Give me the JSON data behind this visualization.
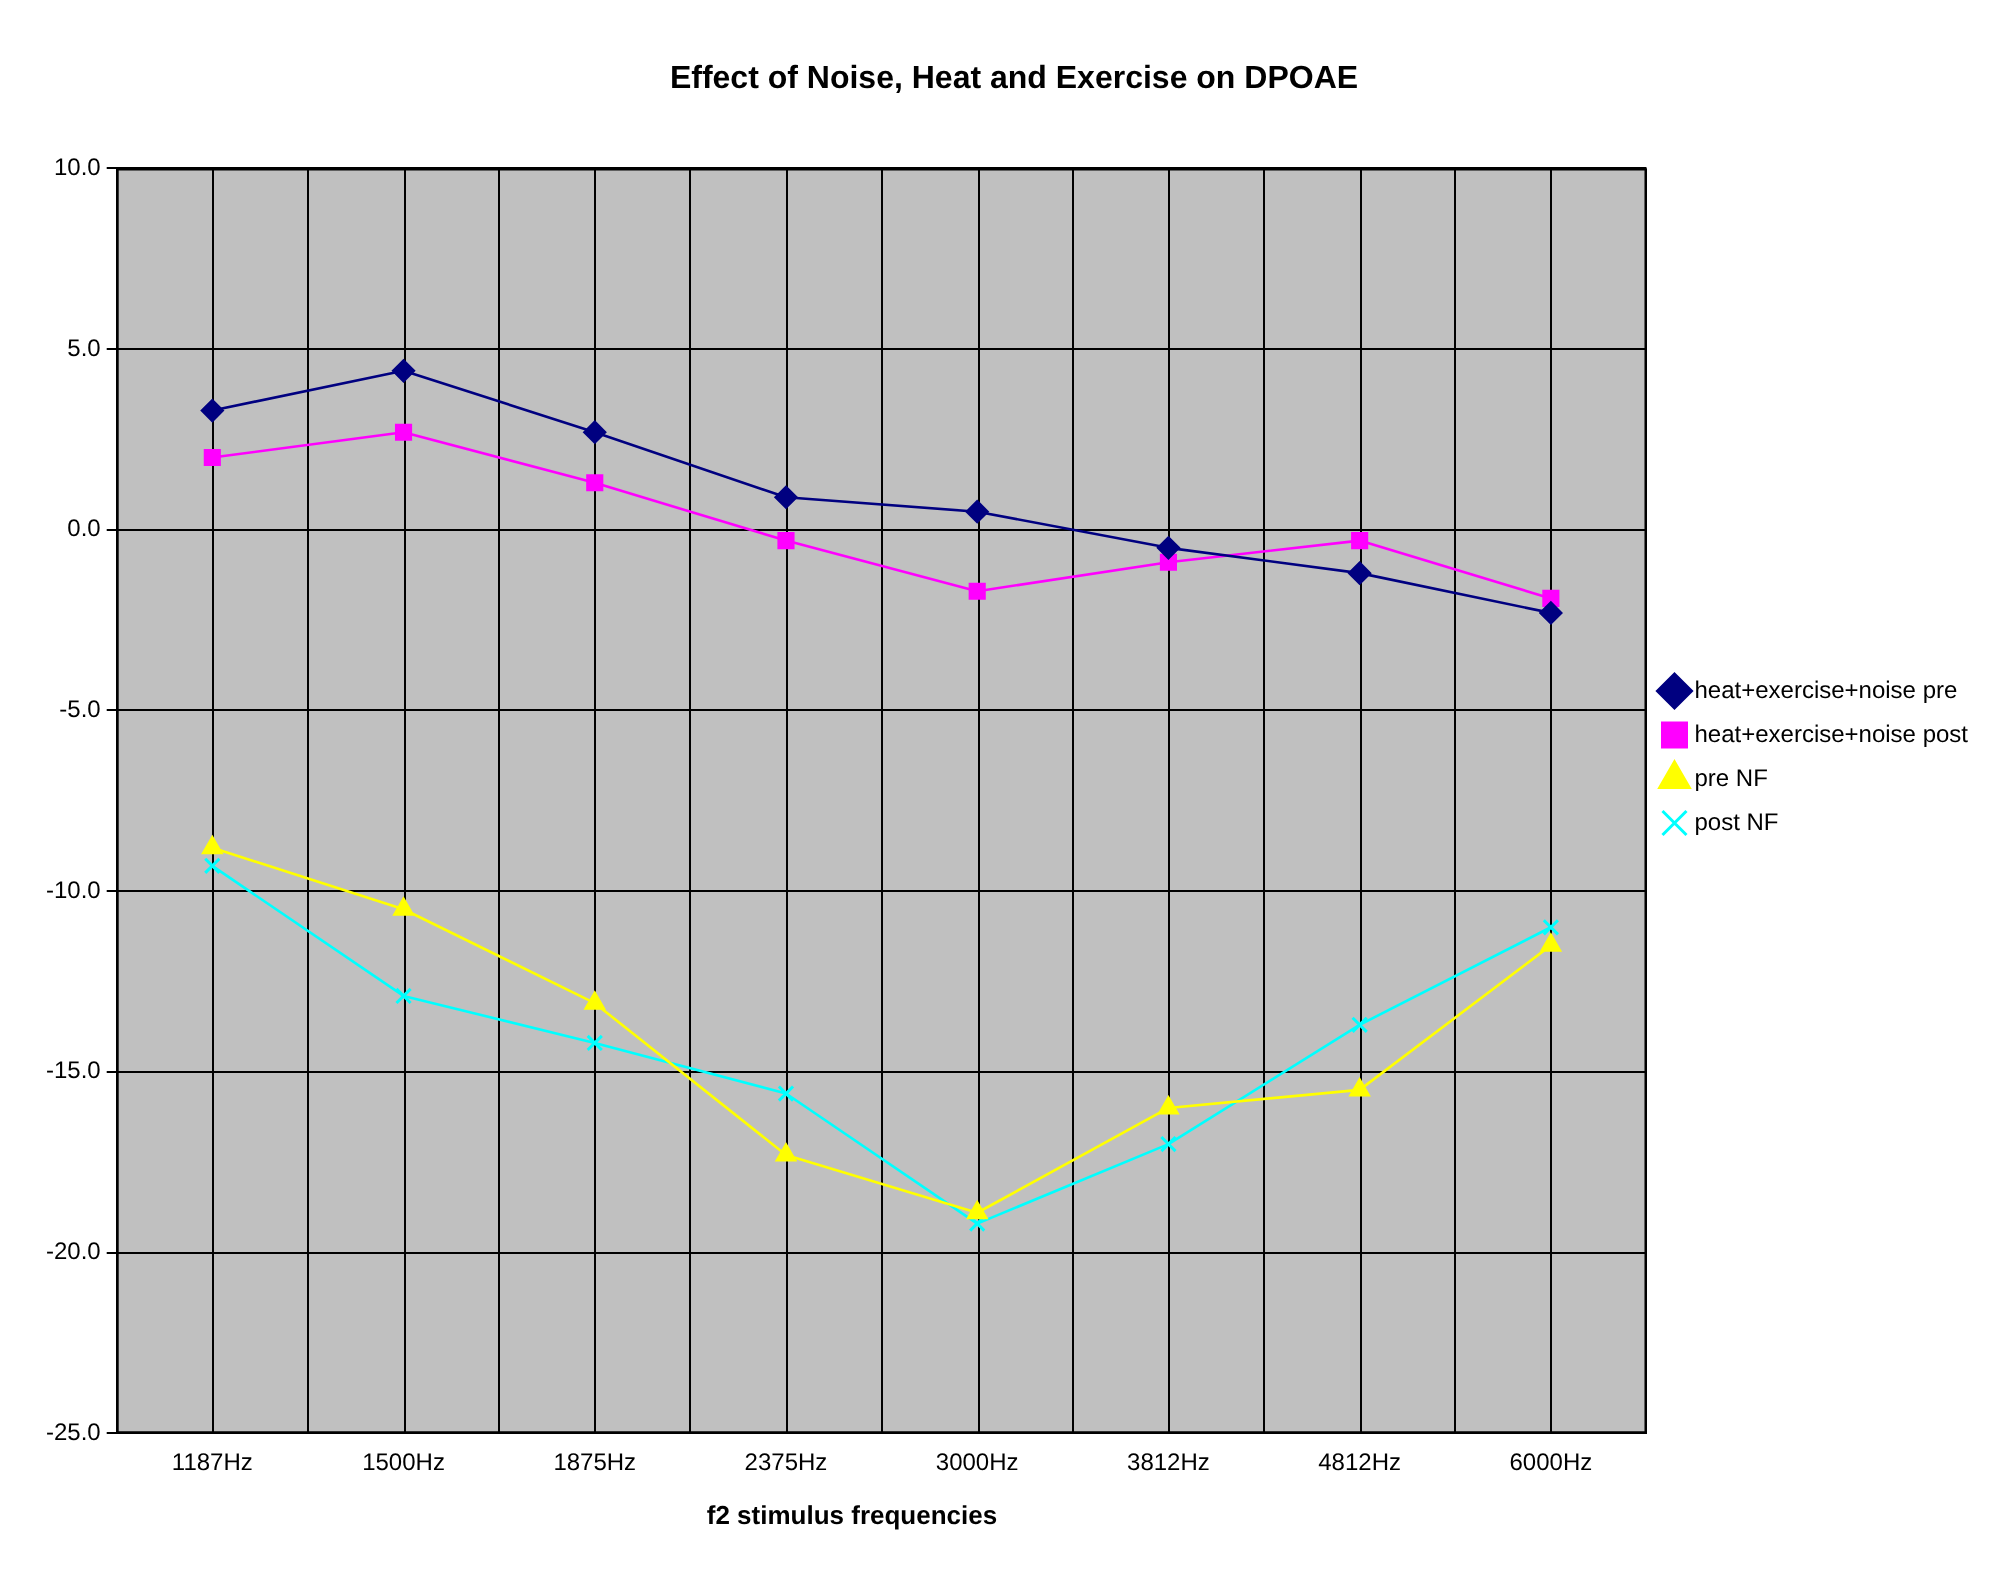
{
  "chart_data": {
    "type": "line",
    "title": "Effect of Noise, Heat and Exercise on DPOAE",
    "xlabel": "f2 stimulus frequencies",
    "categories": [
      "1187Hz",
      "1500Hz",
      "1875Hz",
      "2375Hz",
      "3000Hz",
      "3812Hz",
      "4812Hz",
      "6000Hz"
    ],
    "series": [
      {
        "name": "heat+exercise+noise pre",
        "color": "#000080",
        "marker": "diamond",
        "values": [
          3.3,
          4.4,
          2.7,
          0.9,
          0.5,
          -0.5,
          -1.2,
          -2.3
        ]
      },
      {
        "name": "heat+exercise+noise post",
        "color": "#ff00ff",
        "marker": "square",
        "values": [
          2.0,
          2.7,
          1.3,
          -0.3,
          -1.7,
          -0.9,
          -0.3,
          -1.9
        ]
      },
      {
        "name": "pre NF",
        "color": "#ffff00",
        "marker": "triangle",
        "values": [
          -8.8,
          -10.5,
          -13.1,
          -17.3,
          -18.9,
          -16.0,
          -15.5,
          -11.5
        ]
      },
      {
        "name": "post NF",
        "color": "#00ffff",
        "marker": "cross",
        "values": [
          -9.3,
          -12.9,
          -14.2,
          -15.6,
          -19.2,
          -17.0,
          -13.7,
          -11.0
        ]
      }
    ],
    "ylim": [
      -25,
      10
    ],
    "yticks": [
      {
        "value": -25,
        "label": "-25.0"
      },
      {
        "value": -20,
        "label": "-20.0"
      },
      {
        "value": -15,
        "label": "-15.0"
      },
      {
        "value": -10,
        "label": "-10.0"
      },
      {
        "value": -5,
        "label": "-5.0"
      },
      {
        "value": 0,
        "label": "0.0"
      },
      {
        "value": 5,
        "label": "5.0"
      },
      {
        "value": 10,
        "label": "10.0"
      }
    ],
    "grid": true,
    "legend": "right"
  }
}
